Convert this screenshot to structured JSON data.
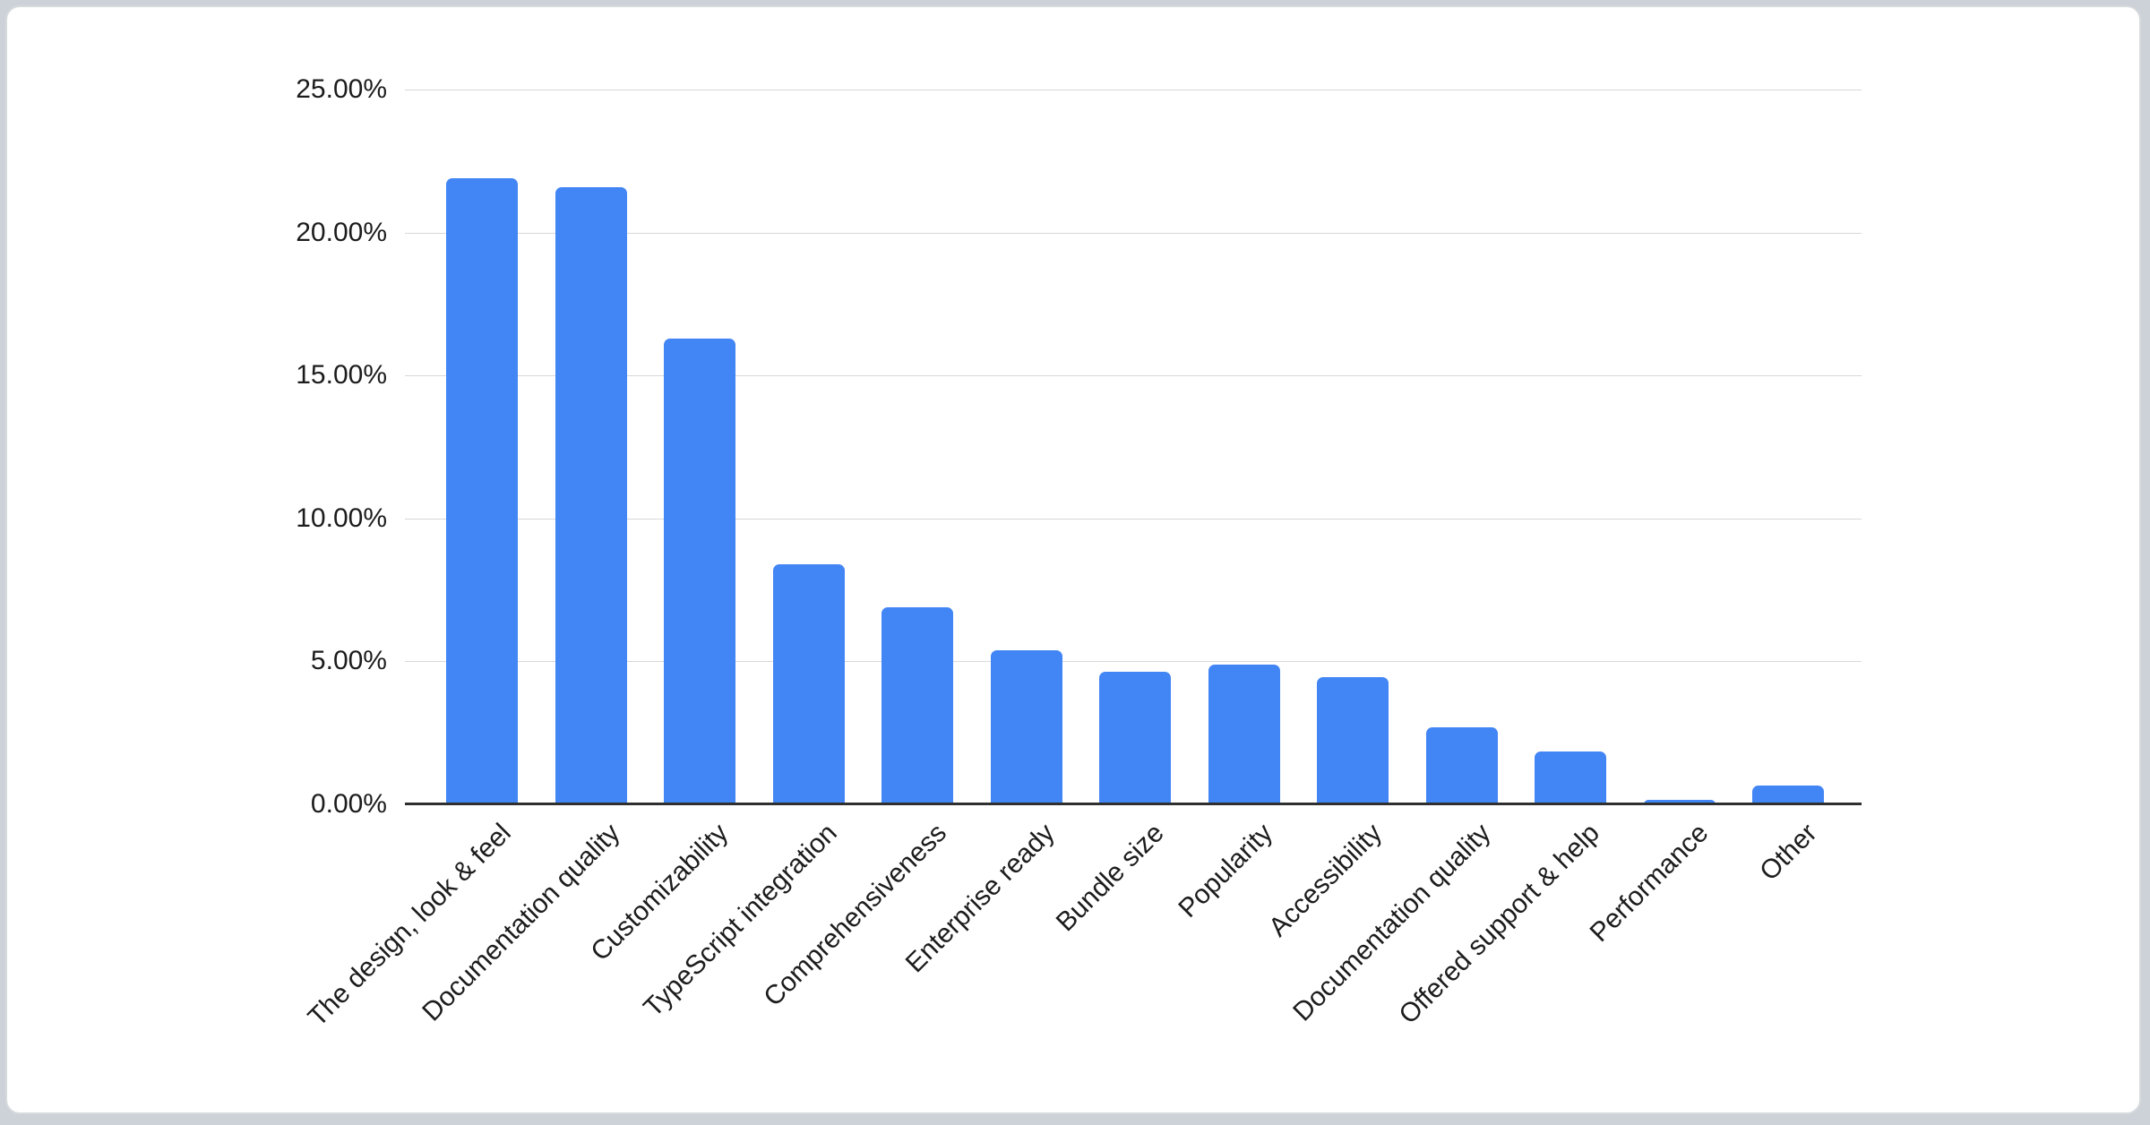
{
  "page": {
    "background_color": "#cdd2d9",
    "card_background_color": "#ffffff",
    "card_border_color": "#d7dadd"
  },
  "chart_data": {
    "type": "bar",
    "categories": [
      "The design, look & feel",
      "Documentation quality",
      "Customizability",
      "TypeScript integration",
      "Comprehensiveness",
      "Enterprise ready",
      "Bundle size",
      "Popularity",
      "Accessibility",
      "Documentation quality",
      "Offered support & help",
      "Performance",
      "Other"
    ],
    "values": [
      21.9,
      21.6,
      16.3,
      8.4,
      6.9,
      5.4,
      4.65,
      4.9,
      4.45,
      2.7,
      1.85,
      0.15,
      0.65
    ],
    "value_unit": "%",
    "y_tick_labels": [
      "0.00%",
      "5.00%",
      "10.00%",
      "15.00%",
      "20.00%",
      "25.00%"
    ],
    "ylim": [
      0,
      25
    ],
    "y_tick_step": 5,
    "grid": true,
    "legend": "none",
    "x_label_rotation_deg": -45,
    "bar_color": "#4285f4",
    "gridline_color": "#d8d8d8",
    "axis_line_color": "#2f2f2f",
    "tick_label_color": "#1c1c1c"
  }
}
